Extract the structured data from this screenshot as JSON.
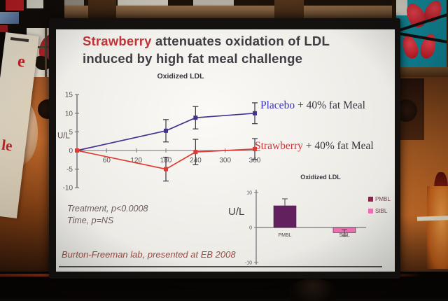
{
  "slide": {
    "title": {
      "highlight": "Strawberry",
      "rest": " attenuates oxidation of LDL\ninduced by high fat meal challenge"
    },
    "stats_line1": "Treatment, p<0.0008",
    "stats_line2": "Time, p=NS",
    "attribution": "Burton-Freeman lab, presented at EB 2008"
  },
  "surroundings": {
    "banner_fragment_top": "e",
    "banner_fragment_bottom": "le"
  },
  "chart_data": [
    {
      "type": "line",
      "title": "Oxidized LDL",
      "ylabel": "U/L",
      "xlabel": "",
      "xlim": [
        0,
        380
      ],
      "ylim": [
        -10,
        15
      ],
      "xticks": [
        60,
        120,
        180,
        240,
        300,
        360
      ],
      "yticks": [
        15,
        10,
        5,
        0,
        -5,
        -10
      ],
      "grid": false,
      "legend_position": "right-of-line",
      "series": [
        {
          "name": "Placebo + 40% fat Meal",
          "label_colored": "Placebo",
          "label_rest": " + 40% fat Meal",
          "color": "#46318e",
          "label_color": "#3b35c0",
          "x": [
            0,
            180,
            240,
            360
          ],
          "y": [
            0,
            5.3,
            8.8,
            10
          ],
          "yerr": [
            0,
            3,
            3,
            2.8
          ]
        },
        {
          "name": "Strawberry + 40% fat Meal",
          "label_colored": "Strawberry",
          "label_rest": " + 40% fat Meal",
          "color": "#e23a33",
          "label_color": "#c6373b",
          "x": [
            0,
            180,
            240,
            360
          ],
          "y": [
            0,
            -5,
            -0.4,
            0.4
          ],
          "yerr": [
            0,
            3.2,
            3.4,
            2.8
          ]
        }
      ],
      "annotations": [
        "Treatment, p<0.0008",
        "Time, p=NS"
      ]
    },
    {
      "type": "bar",
      "title": "Oxidized LDL",
      "ylabel": "U/L",
      "categories": [
        "PMBL",
        "StBL"
      ],
      "values": [
        6.2,
        -1.5
      ],
      "errors": [
        2,
        0.9
      ],
      "bar_colors": [
        "#63205f",
        "#ee6fb0"
      ],
      "ylim": [
        -10,
        10
      ],
      "yticks": [
        10,
        0,
        -10
      ],
      "legend_position": "right",
      "legend": [
        {
          "label": "PMBL",
          "color": "#8a2448"
        },
        {
          "label": "StBL",
          "color": "#ee6fb0"
        }
      ]
    }
  ]
}
